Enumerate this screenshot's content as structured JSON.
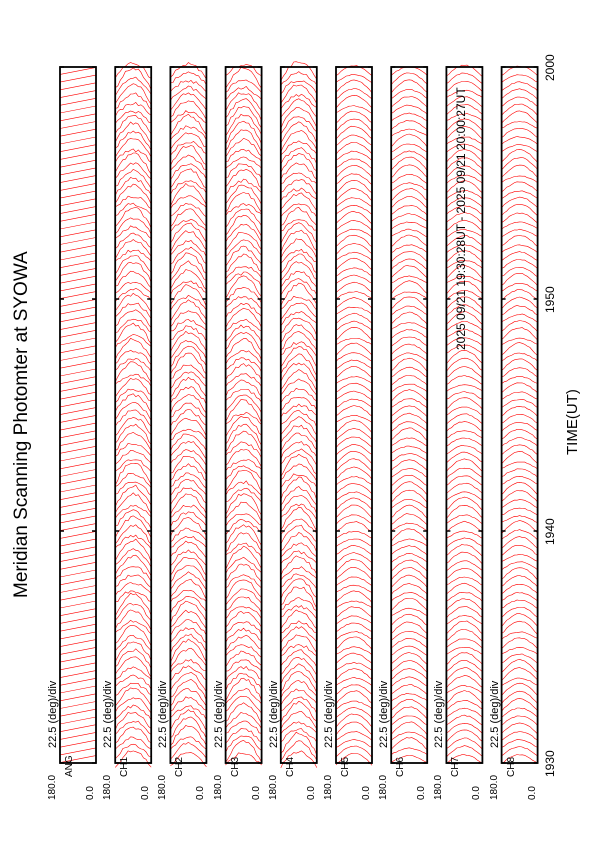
{
  "title": "Meridian Scanning Photomter at SYOWA",
  "subtitle": "2025 09/21 19:30:28UT - 2025 09/21 20:00:27UT",
  "chart_data": {
    "type": "line",
    "title": "Meridian Scanning Photomter at SYOWA",
    "subtitle": "2025 09/21 19:30:28UT - 2025 09/21 20:00:27UT",
    "xlabel": "TIME(UT)",
    "x_ticks": [
      "1930",
      "1940",
      "1950",
      "2000"
    ],
    "xlim": [
      "19:30",
      "20:00"
    ],
    "panel_scale_label": "22.5 (deg)/div",
    "ylim": [
      0.0,
      180.0
    ],
    "y_ticks": [
      "180.0",
      "0.0"
    ],
    "series_color": "#ff0000",
    "panels": [
      {
        "channel": "ANG",
        "ytop": "180.0",
        "ybottom": "0.0",
        "scale": "22.5 (deg)/div"
      },
      {
        "channel": "CH1",
        "ytop": "180.0",
        "ybottom": "0.0",
        "scale": "22.5 (deg)/div"
      },
      {
        "channel": "CH2",
        "ytop": "180.0",
        "ybottom": "0.0",
        "scale": "22.5 (deg)/div"
      },
      {
        "channel": "CH3",
        "ytop": "180.0",
        "ybottom": "0.0",
        "scale": "22.5 (deg)/div"
      },
      {
        "channel": "CH4",
        "ytop": "180.0",
        "ybottom": "0.0",
        "scale": "22.5 (deg)/div"
      },
      {
        "channel": "CH5",
        "ytop": "180.0",
        "ybottom": "0.0",
        "scale": "22.5 (deg)/div"
      },
      {
        "channel": "CH6",
        "ytop": "180.0",
        "ybottom": "0.0",
        "scale": "22.5 (deg)/div"
      },
      {
        "channel": "CH7",
        "ytop": "180.0",
        "ybottom": "0.0",
        "scale": "22.5 (deg)/div"
      },
      {
        "channel": "CH8",
        "ytop": "180.0",
        "ybottom": "0.0",
        "scale": "22.5 (deg)/div"
      }
    ]
  }
}
